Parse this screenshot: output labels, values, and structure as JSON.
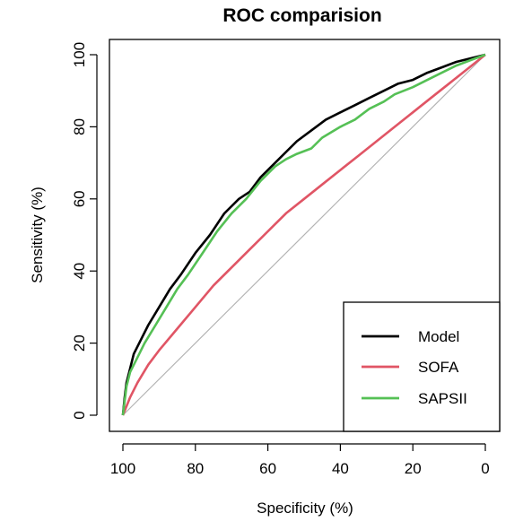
{
  "chart_data": {
    "type": "line",
    "title": "ROC comparision",
    "xlabel": "Specificity (%)",
    "ylabel": "Sensitivity (%)",
    "xlim": [
      100,
      0
    ],
    "ylim": [
      0,
      100
    ],
    "x_reversed": true,
    "x_ticks": [
      100,
      80,
      60,
      40,
      20,
      0
    ],
    "y_ticks": [
      0,
      20,
      40,
      60,
      80,
      100
    ],
    "x_tick_labels": [
      "100",
      "80",
      "60",
      "40",
      "20",
      "0"
    ],
    "y_tick_labels": [
      "0",
      "20",
      "40",
      "60",
      "80",
      "100"
    ],
    "grid": false,
    "legend_position": "bottom-right",
    "reference_line": {
      "from": [
        100,
        0
      ],
      "to": [
        0,
        100
      ],
      "color": "#b3b3b3"
    },
    "series": [
      {
        "name": "Model",
        "color": "#000000",
        "points": [
          [
            100,
            0
          ],
          [
            99.5,
            5
          ],
          [
            99,
            9
          ],
          [
            98,
            13
          ],
          [
            97,
            17
          ],
          [
            95,
            21
          ],
          [
            93,
            25
          ],
          [
            90,
            30
          ],
          [
            87,
            35
          ],
          [
            84,
            39
          ],
          [
            80,
            45
          ],
          [
            76,
            50
          ],
          [
            72,
            56
          ],
          [
            68,
            60
          ],
          [
            65,
            62
          ],
          [
            62,
            66
          ],
          [
            58,
            70
          ],
          [
            55,
            73
          ],
          [
            52,
            76
          ],
          [
            48,
            79
          ],
          [
            44,
            82
          ],
          [
            40,
            84
          ],
          [
            36,
            86
          ],
          [
            32,
            88
          ],
          [
            28,
            90
          ],
          [
            24,
            92
          ],
          [
            20,
            93
          ],
          [
            16,
            95
          ],
          [
            12,
            96.5
          ],
          [
            8,
            98
          ],
          [
            4,
            99
          ],
          [
            0,
            100
          ]
        ]
      },
      {
        "name": "SOFA",
        "color": "#e05565",
        "points": [
          [
            100,
            0
          ],
          [
            98,
            5
          ],
          [
            96,
            9
          ],
          [
            93,
            14
          ],
          [
            90,
            18
          ],
          [
            85,
            24
          ],
          [
            80,
            30
          ],
          [
            75,
            36
          ],
          [
            70,
            41
          ],
          [
            65,
            46
          ],
          [
            60,
            51
          ],
          [
            55,
            56
          ],
          [
            50,
            60
          ],
          [
            45,
            64
          ],
          [
            40,
            68
          ],
          [
            35,
            72
          ],
          [
            30,
            76
          ],
          [
            25,
            80
          ],
          [
            20,
            84
          ],
          [
            15,
            88
          ],
          [
            10,
            92
          ],
          [
            5,
            96
          ],
          [
            0,
            100
          ]
        ]
      },
      {
        "name": "SAPSII",
        "color": "#55c055",
        "points": [
          [
            100,
            0
          ],
          [
            99.5,
            4
          ],
          [
            99,
            8
          ],
          [
            98,
            12
          ],
          [
            96,
            16
          ],
          [
            94,
            20
          ],
          [
            91,
            25
          ],
          [
            88,
            30
          ],
          [
            85,
            35
          ],
          [
            82,
            39
          ],
          [
            78,
            45
          ],
          [
            74,
            51
          ],
          [
            70,
            56
          ],
          [
            66,
            60
          ],
          [
            62,
            65
          ],
          [
            58,
            69
          ],
          [
            55,
            71
          ],
          [
            52,
            72.5
          ],
          [
            48,
            74
          ],
          [
            45,
            77
          ],
          [
            40,
            80
          ],
          [
            36,
            82
          ],
          [
            32,
            85
          ],
          [
            28,
            87
          ],
          [
            25,
            89
          ],
          [
            20,
            91
          ],
          [
            16,
            93
          ],
          [
            12,
            95
          ],
          [
            8,
            97
          ],
          [
            4,
            98.5
          ],
          [
            0,
            100
          ]
        ]
      }
    ]
  }
}
